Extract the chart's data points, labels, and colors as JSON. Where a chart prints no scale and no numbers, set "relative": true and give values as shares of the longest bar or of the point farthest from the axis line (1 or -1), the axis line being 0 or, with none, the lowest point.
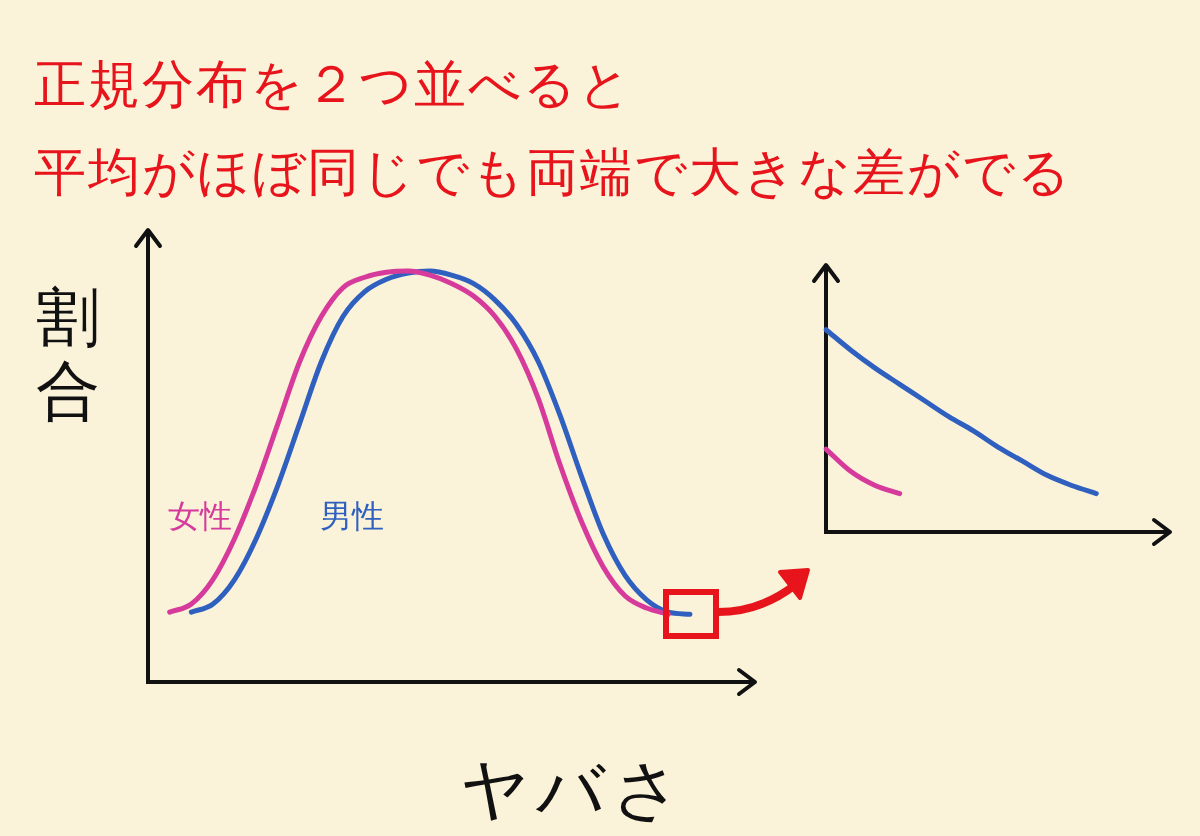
{
  "chart_data": [
    {
      "type": "line",
      "title": "正規分布を２つ並べると",
      "subtitle": "平均がほぼ同じでも両端で大きな差がでる",
      "xlabel": "ヤバさ",
      "ylabel": "割合",
      "relative": true,
      "tick_labels": false,
      "marker": "none",
      "legend": false,
      "grid": false,
      "categories": [
        null,
        null,
        null,
        null,
        null,
        null,
        null,
        null,
        null,
        null,
        null,
        null,
        null,
        null,
        null,
        null,
        null,
        null,
        null,
        null,
        null,
        null,
        null,
        null,
        null,
        null,
        null,
        null,
        null
      ],
      "series": [
        {
          "name": "女性",
          "color": "#d63a9a",
          "values": [
            null,
            0.17,
            0.19,
            0.25,
            0.35,
            0.48,
            0.63,
            0.78,
            0.89,
            0.96,
            0.985,
            0.997,
            1,
            0.99,
            0.97,
            0.94,
            0.89,
            0.81,
            0.69,
            0.53,
            0.39,
            0.28,
            0.21,
            0.18,
            0.165,
            null,
            null,
            null,
            null
          ]
        },
        {
          "name": "男性",
          "color": "#2f5fbf",
          "values": [
            null,
            null,
            0.17,
            0.19,
            0.25,
            0.35,
            0.48,
            0.63,
            0.78,
            0.89,
            0.95,
            0.98,
            0.995,
            1,
            0.99,
            0.97,
            0.93,
            0.87,
            0.78,
            0.65,
            0.5,
            0.36,
            0.26,
            0.2,
            0.17,
            0.165,
            null,
            null,
            null
          ]
        }
      ]
    },
    {
      "type": "line",
      "relative": true,
      "tick_labels": false,
      "marker": "none",
      "legend": false,
      "grid": false,
      "categories": [
        null,
        null,
        null,
        null,
        null,
        null,
        null,
        null,
        null,
        null,
        null,
        null,
        null,
        null,
        null
      ],
      "series": [
        {
          "color": "#2f5fbf",
          "values": [
            1,
            0.9,
            0.81,
            0.73,
            0.65,
            0.57,
            0.5,
            0.42,
            0.35,
            0.28,
            0.23,
            0.19,
            null,
            null,
            null
          ]
        },
        {
          "color": "#d63a9a",
          "values": [
            0.41,
            0.3,
            0.23,
            0.19,
            null,
            null,
            null,
            null,
            null,
            null,
            null,
            null,
            null,
            null,
            null
          ]
        }
      ]
    }
  ]
}
